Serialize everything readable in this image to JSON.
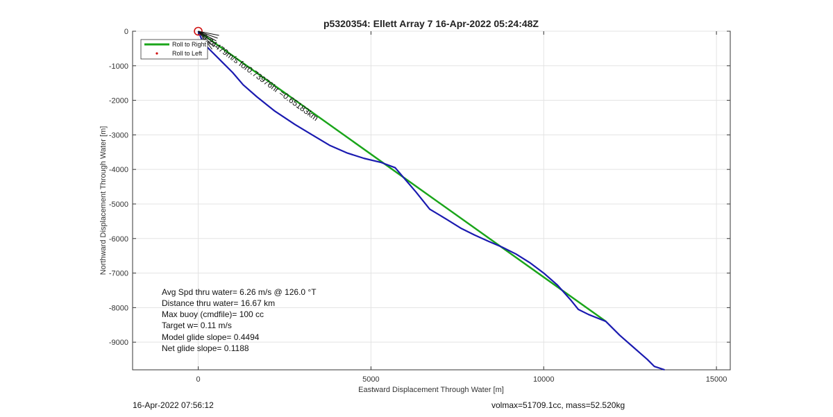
{
  "chart_data": {
    "type": "line",
    "title": "p5320354: Ellett Array 7 16-Apr-2022 05:24:48Z",
    "xlabel": "Eastward Displacement Through Water [m]",
    "ylabel": "Northward Displacement Through Water [m]",
    "xlim": [
      -1900,
      15400
    ],
    "ylim": [
      -9800,
      0
    ],
    "xticks": [
      0,
      5000,
      10000,
      15000
    ],
    "yticks": [
      0,
      -1000,
      -2000,
      -3000,
      -4000,
      -5000,
      -6000,
      -7000,
      -8000,
      -9000
    ],
    "xtick_labels": [
      "0",
      "5000",
      "10000",
      "15000"
    ],
    "ytick_labels": [
      "0",
      "-1000",
      "-2000",
      "-3000",
      "-4000",
      "-5000",
      "-6000",
      "-7000",
      "-8000",
      "-9000"
    ],
    "grid": true,
    "legend": {
      "placement": "top-left",
      "entries": [
        "Roll to Right",
        "Roll to Left"
      ]
    },
    "series": [
      {
        "name": "Roll to Right",
        "color": "#1aa51a",
        "x": [
          0,
          11800
        ],
        "y": [
          0,
          -8400
        ]
      },
      {
        "name": "Roll to Left",
        "color": "#d01010",
        "x": [],
        "y": []
      }
    ],
    "track": {
      "color": "#1a1ab0",
      "x": [
        0,
        150,
        400,
        700,
        1000,
        1300,
        1700,
        2200,
        2800,
        3300,
        3800,
        4300,
        4800,
        5300,
        5700,
        6000,
        6300,
        6700,
        7200,
        7600,
        8000,
        8400,
        8800,
        9200,
        9600,
        10000,
        10400,
        10800,
        11000,
        11300,
        11800,
        12200,
        12600,
        13000,
        13200,
        13500
      ],
      "y": [
        0,
        -350,
        -600,
        -900,
        -1200,
        -1550,
        -1900,
        -2300,
        -2700,
        -3000,
        -3300,
        -3520,
        -3680,
        -3800,
        -3950,
        -4300,
        -4650,
        -5150,
        -5450,
        -5700,
        -5900,
        -6080,
        -6250,
        -6450,
        -6700,
        -7000,
        -7350,
        -7800,
        -8050,
        -8200,
        -8400,
        -8800,
        -9150,
        -9500,
        -9700,
        -9800
      ]
    },
    "start_marker": {
      "x": 0,
      "y": 0,
      "color": "#d01010"
    },
    "stats_text": [
      "Avg Spd thru water=  6.26 m/s @ 126.0 °T",
      "Distance thru water= 16.67 km",
      "Max buoy (cmdfile)= 100 cc",
      "Target w= 0.11 m/s",
      "Model glide slope= 0.4494",
      "Net glide slope= 0.1188"
    ],
    "annotations": [
      "0.24479m/s for0.73976hr =0.65183km"
    ]
  },
  "footer": {
    "left": "16-Apr-2022 07:56:12",
    "right": "volmax=51709.1cc, mass=52.520kg"
  }
}
